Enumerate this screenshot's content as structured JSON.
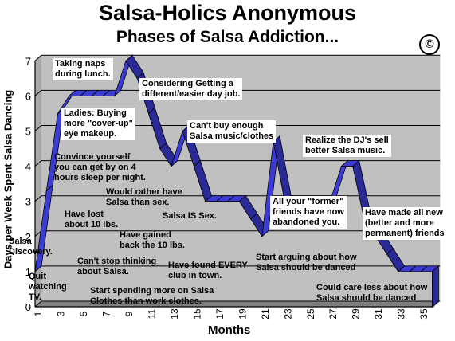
{
  "title": "Salsa-Holics Anonymous",
  "subtitle": "Phases of Salsa Addiction...",
  "copyright_symbol": "©",
  "chart_data": {
    "type": "line",
    "style": "3d-ribbon",
    "xlabel": "Months",
    "ylabel": "Days per Week Spent Salsa Dancing",
    "x": [
      1,
      2,
      3,
      4,
      5,
      6,
      7,
      8,
      9,
      10,
      11,
      12,
      13,
      14,
      15,
      16,
      17,
      18,
      19,
      20,
      21,
      22,
      23,
      24,
      25,
      26,
      27,
      28,
      29,
      30,
      31,
      32,
      33,
      34,
      35,
      36
    ],
    "values": [
      1,
      3.3,
      5.5,
      6,
      6,
      6,
      6,
      6,
      7,
      6.5,
      5.5,
      4.5,
      4,
      5,
      4,
      3,
      3,
      3,
      3,
      2.5,
      2,
      4.7,
      3,
      3,
      3,
      3,
      3,
      4,
      4,
      2.5,
      2,
      1.5,
      1,
      1,
      1,
      1
    ],
    "xticks": [
      "1",
      "3",
      "5",
      "7",
      "9",
      "11",
      "13",
      "15",
      "17",
      "19",
      "21",
      "23",
      "25",
      "27",
      "29",
      "31",
      "33",
      "35"
    ],
    "yticks": [
      "0",
      "1",
      "2",
      "3",
      "4",
      "5",
      "6",
      "7"
    ],
    "ylim": [
      0,
      7
    ],
    "grid": true,
    "colors": {
      "ribbon_top": "#3c3cd2",
      "ribbon_front": "#2a2a96",
      "wall": "#c0c0c0",
      "floor": "#808080"
    },
    "annotations": [
      {
        "text": "Salsa\nDiscovery.",
        "boxed": false
      },
      {
        "text": "Quit\nwatching\nTV.",
        "boxed": false
      },
      {
        "text": "Have lost\nabout 10 lbs.",
        "boxed": false
      },
      {
        "text": "Ladies: Buying\nmore \"cover-up\"\neye makeup.",
        "boxed": true
      },
      {
        "text": "Convince yourself\nyou can get by on 4\nhours sleep per night.",
        "boxed": false
      },
      {
        "text": "Taking naps\nduring lunch.",
        "boxed": true
      },
      {
        "text": "Can't stop thinking\nabout Salsa.",
        "boxed": false
      },
      {
        "text": "Start spending more on Salsa\nClothes than work clothes.",
        "boxed": false
      },
      {
        "text": "Would rather have\nSalsa than sex.",
        "boxed": false
      },
      {
        "text": "Have gained\nback the 10 lbs.",
        "boxed": false
      },
      {
        "text": "Considering Getting a\ndifferent/easier day job.",
        "boxed": true
      },
      {
        "text": "Salsa IS Sex.",
        "boxed": false
      },
      {
        "text": "Have found EVERY\nclub in town.",
        "boxed": false
      },
      {
        "text": "Can't buy enough\nSalsa music/clothes",
        "boxed": true
      },
      {
        "text": "Start arguing about how\nSalsa should be danced",
        "boxed": false
      },
      {
        "text": "All your \"former\"\nfriends have now\nabandoned you.",
        "boxed": true
      },
      {
        "text": "Realize the DJ's sell\nbetter Salsa music.",
        "boxed": true
      },
      {
        "text": "Could care less about how\nSalsa should be danced",
        "boxed": false
      },
      {
        "text": "Have made all new\n(better and more\npermanent) friends",
        "boxed": true
      }
    ]
  }
}
